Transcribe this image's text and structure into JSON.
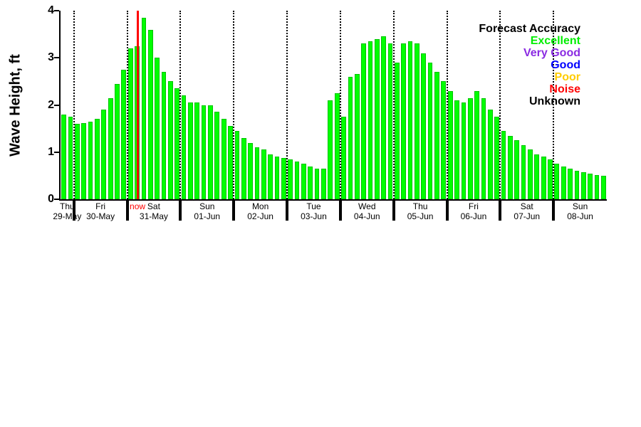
{
  "chart_data": {
    "type": "bar",
    "title": "",
    "ylabel": "Wave Height, ft",
    "ylim": [
      0,
      4
    ],
    "yticks": [
      0,
      1,
      2,
      3,
      4
    ],
    "bar_color": "#00ff00",
    "bar_accuracy": "Excellent",
    "interval_hours": 3,
    "grid": "vertical-dotted-day-boundaries",
    "days": [
      {
        "name": "Thu",
        "date": "29-May",
        "values": [
          1.8,
          1.75
        ]
      },
      {
        "name": "Fri",
        "date": "30-May",
        "values": [
          1.6,
          1.62,
          1.65,
          1.7,
          1.9,
          2.15,
          2.45,
          2.75
        ]
      },
      {
        "name": "Sat",
        "date": "31-May",
        "values": [
          3.2,
          3.25,
          3.85,
          3.6,
          3.0,
          2.7,
          2.5,
          2.35
        ]
      },
      {
        "name": "Sun",
        "date": "01-Jun",
        "values": [
          2.2,
          2.05,
          2.05,
          2.0,
          2.0,
          1.85,
          1.7,
          1.55
        ]
      },
      {
        "name": "Mon",
        "date": "02-Jun",
        "values": [
          1.45,
          1.3,
          1.2,
          1.1,
          1.05,
          0.95,
          0.9,
          0.88
        ]
      },
      {
        "name": "Tue",
        "date": "03-Jun",
        "values": [
          0.85,
          0.8,
          0.75,
          0.7,
          0.65,
          0.65,
          2.1,
          2.25
        ]
      },
      {
        "name": "Wed",
        "date": "04-Jun",
        "values": [
          1.75,
          2.6,
          2.65,
          3.3,
          3.35,
          3.4,
          3.45,
          3.3
        ]
      },
      {
        "name": "Thu",
        "date": "05-Jun",
        "values": [
          2.9,
          3.3,
          3.35,
          3.3,
          3.1,
          2.9,
          2.7,
          2.5
        ]
      },
      {
        "name": "Fri",
        "date": "06-Jun",
        "values": [
          2.3,
          2.1,
          2.05,
          2.15,
          2.3,
          2.15,
          1.9,
          1.75
        ]
      },
      {
        "name": "Sat",
        "date": "07-Jun",
        "values": [
          1.45,
          1.35,
          1.25,
          1.15,
          1.05,
          0.95,
          0.9,
          0.85
        ]
      },
      {
        "name": "Sun",
        "date": "08-Jun",
        "values": [
          0.75,
          0.7,
          0.65,
          0.6,
          0.58,
          0.55,
          0.52,
          0.5
        ]
      }
    ],
    "now_marker": {
      "label": "now",
      "color": "#ff0000",
      "slot": 11.55,
      "near_date": "31-May"
    }
  },
  "legend": {
    "title": "Forecast Accuracy",
    "entries": [
      {
        "label": "Excellent",
        "color": "#00ee00"
      },
      {
        "label": "Very Good",
        "color": "#8a2be2"
      },
      {
        "label": "Good",
        "color": "#0000ff"
      },
      {
        "label": "Poor",
        "color": "#ffcc00"
      },
      {
        "label": "Noise",
        "color": "#ff0000"
      },
      {
        "label": "Unknown",
        "color": "#000000"
      }
    ]
  }
}
